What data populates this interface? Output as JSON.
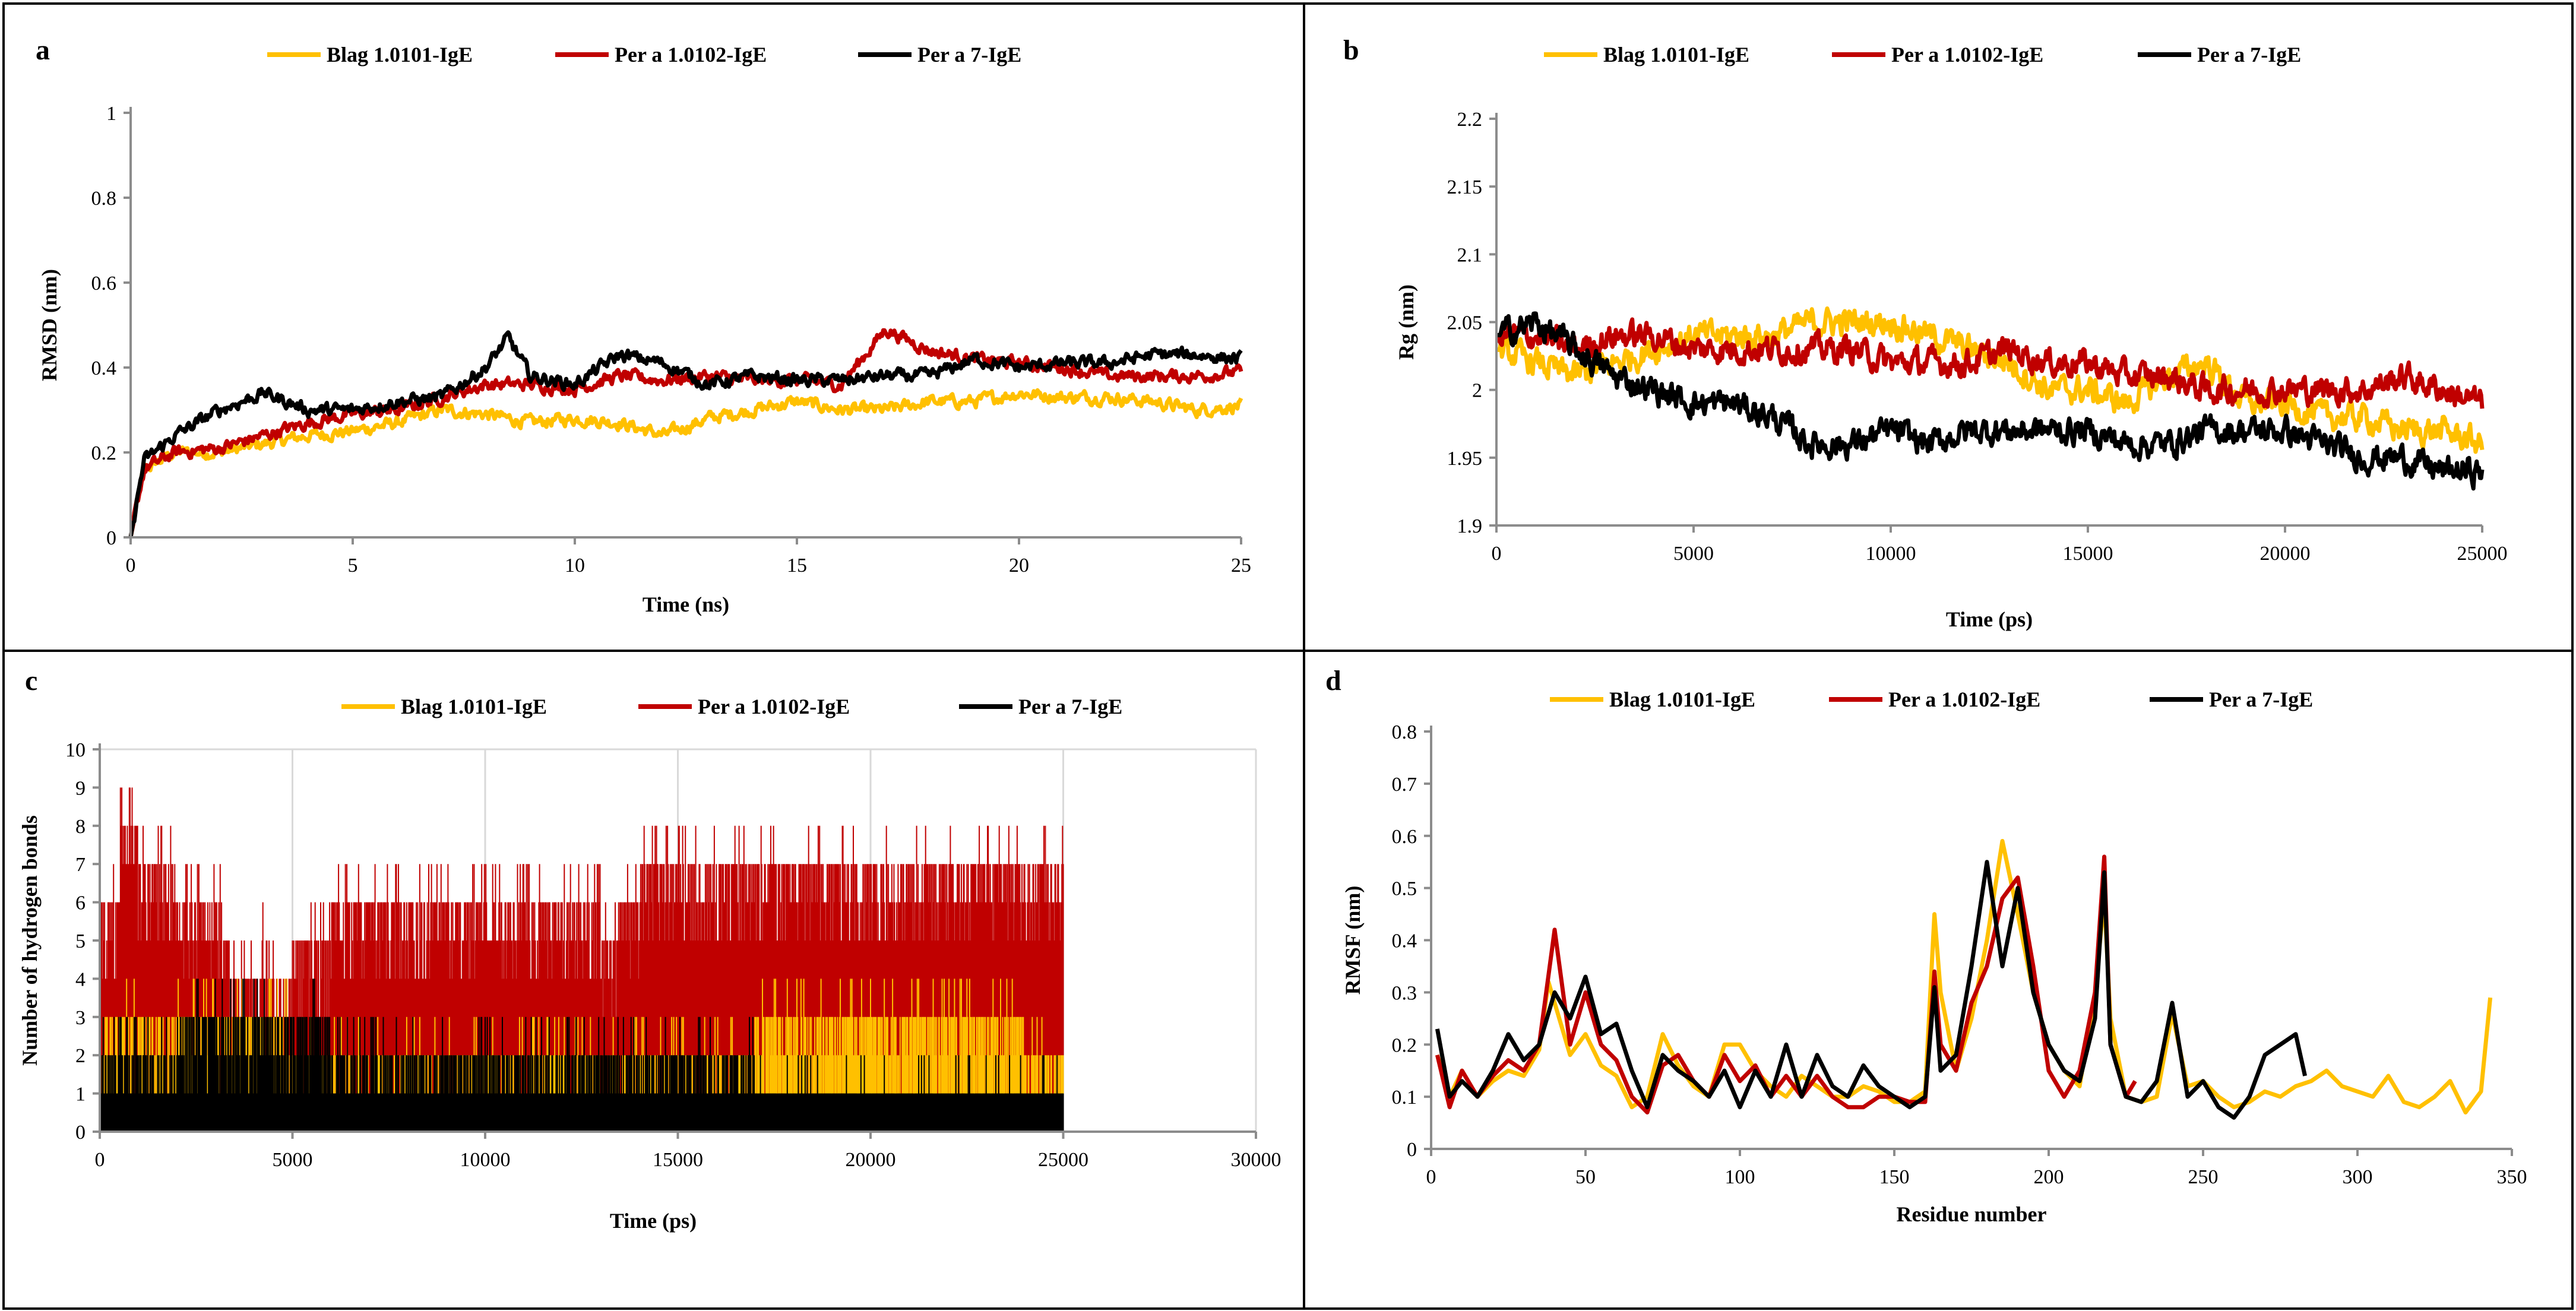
{
  "chart_data": [
    {
      "panel": "a",
      "type": "line",
      "xlabel": "Time (ns)",
      "ylabel": "RMSD (nm)",
      "xlim": [
        0,
        25
      ],
      "ylim": [
        0,
        1
      ],
      "xticks": [
        "0",
        "5",
        "10",
        "15",
        "20",
        "25"
      ],
      "yticks": [
        "0",
        "0.2",
        "0.4",
        "0.6",
        "0.8",
        "1"
      ],
      "grid": false,
      "legend": "top",
      "series": [
        {
          "name": "Blag 1.0101-IgE",
          "color": "#ffc000",
          "x": [
            0,
            0.3,
            1,
            2,
            3,
            4,
            5,
            6,
            7,
            8,
            9,
            10,
            11,
            12,
            13,
            14,
            15,
            16,
            17,
            18,
            19,
            20,
            21,
            22,
            23,
            24,
            25
          ],
          "y": [
            0,
            0.16,
            0.2,
            0.2,
            0.22,
            0.24,
            0.25,
            0.27,
            0.3,
            0.29,
            0.27,
            0.28,
            0.27,
            0.24,
            0.28,
            0.3,
            0.32,
            0.3,
            0.3,
            0.32,
            0.32,
            0.34,
            0.33,
            0.33,
            0.32,
            0.3,
            0.31
          ]
        },
        {
          "name": "Per a 1.0102-IgE",
          "color": "#c00000",
          "x": [
            0,
            0.3,
            1,
            2,
            3,
            4,
            5,
            6,
            7,
            8,
            9,
            10,
            11,
            12,
            13,
            14,
            15,
            16,
            17,
            18,
            19,
            20,
            21,
            22,
            23,
            24,
            25
          ],
          "y": [
            0,
            0.16,
            0.2,
            0.21,
            0.24,
            0.27,
            0.29,
            0.3,
            0.33,
            0.36,
            0.36,
            0.35,
            0.38,
            0.37,
            0.38,
            0.37,
            0.37,
            0.36,
            0.49,
            0.44,
            0.42,
            0.41,
            0.4,
            0.38,
            0.38,
            0.38,
            0.39
          ]
        },
        {
          "name": "Per a 7-IgE",
          "color": "#000000",
          "x": [
            0,
            0.3,
            1,
            2,
            3,
            4,
            5,
            6,
            7,
            8,
            8.5,
            9,
            10,
            11,
            12,
            13,
            14,
            15,
            16,
            17,
            18,
            19,
            20,
            21,
            22,
            23,
            24,
            25
          ],
          "y": [
            0,
            0.18,
            0.24,
            0.3,
            0.34,
            0.3,
            0.3,
            0.32,
            0.33,
            0.4,
            0.47,
            0.38,
            0.36,
            0.43,
            0.41,
            0.36,
            0.38,
            0.37,
            0.37,
            0.38,
            0.38,
            0.42,
            0.4,
            0.41,
            0.41,
            0.43,
            0.43,
            0.42
          ]
        }
      ]
    },
    {
      "panel": "b",
      "type": "line",
      "xlabel": "Time (ps)",
      "ylabel": "Rg (nm)",
      "xlim": [
        0,
        25000
      ],
      "ylim": [
        1.9,
        2.2
      ],
      "xticks": [
        "0",
        "5000",
        "10000",
        "15000",
        "20000",
        "25000"
      ],
      "yticks": [
        "1.9",
        "1.95",
        "2",
        "2.05",
        "2.1",
        "2.15",
        "2.2"
      ],
      "grid": false,
      "legend": "top",
      "series": [
        {
          "name": "Blag 1.0101-IgE",
          "color": "#ffc000",
          "x": [
            0,
            1000,
            2000,
            3000,
            4000,
            5000,
            6000,
            7000,
            8000,
            9000,
            10000,
            11000,
            12000,
            13000,
            14000,
            15000,
            16000,
            17000,
            18000,
            19000,
            20000,
            21000,
            22000,
            23000,
            24000,
            25000
          ],
          "y": [
            2.03,
            2.02,
            2.01,
            2.02,
            2.03,
            2.04,
            2.04,
            2.04,
            2.05,
            2.05,
            2.05,
            2.04,
            2.03,
            2.02,
            2.0,
            2.0,
            1.99,
            2.01,
            2.02,
            1.99,
            1.99,
            1.98,
            1.98,
            1.97,
            1.97,
            1.96
          ]
        },
        {
          "name": "Per a 1.0102-IgE",
          "color": "#c00000",
          "x": [
            0,
            1000,
            2000,
            3000,
            4000,
            5000,
            6000,
            7000,
            8000,
            9000,
            10000,
            11000,
            12000,
            13000,
            14000,
            15000,
            16000,
            17000,
            18000,
            19000,
            20000,
            21000,
            22000,
            23000,
            24000,
            25000
          ],
          "y": [
            2.04,
            2.04,
            2.03,
            2.04,
            2.04,
            2.03,
            2.03,
            2.03,
            2.03,
            2.03,
            2.02,
            2.02,
            2.02,
            2.03,
            2.02,
            2.02,
            2.01,
            2.01,
            2.0,
            2.0,
            2.0,
            2.0,
            2.0,
            2.01,
            2.0,
            1.99
          ]
        },
        {
          "name": "Per a 7-IgE",
          "color": "#000000",
          "x": [
            0,
            1000,
            2000,
            3000,
            4000,
            5000,
            6000,
            7000,
            8000,
            9000,
            10000,
            11000,
            12000,
            13000,
            14000,
            15000,
            16000,
            17000,
            18000,
            19000,
            20000,
            21000,
            22000,
            23000,
            24000,
            25000
          ],
          "y": [
            2.04,
            2.05,
            2.03,
            2.01,
            2.0,
            1.99,
            1.99,
            1.98,
            1.96,
            1.96,
            1.97,
            1.96,
            1.97,
            1.97,
            1.97,
            1.97,
            1.96,
            1.96,
            1.97,
            1.97,
            1.97,
            1.96,
            1.95,
            1.95,
            1.94,
            1.94
          ]
        }
      ]
    },
    {
      "panel": "c",
      "type": "area",
      "xlabel": "Time (ps)",
      "ylabel": "Number  of hydrogen  bonds",
      "xlim": [
        0,
        30000
      ],
      "ylim": [
        0,
        10
      ],
      "xticks": [
        "0",
        "5000",
        "10000",
        "15000",
        "20000",
        "25000",
        "30000"
      ],
      "yticks": [
        "0",
        "1",
        "2",
        "3",
        "4",
        "5",
        "6",
        "7",
        "8",
        "9",
        "10"
      ],
      "grid": true,
      "legend": "top",
      "series": [
        {
          "name": "Per a 1.0102-IgE",
          "color": "#c00000",
          "x": [
            0,
            500,
            1000,
            2000,
            3000,
            3200,
            3400,
            4000,
            4200,
            4400,
            5000,
            6000,
            7000,
            8000,
            9000,
            10000,
            11000,
            12000,
            13000,
            13500,
            14000,
            15000,
            16000,
            17000,
            18000,
            19000,
            20000,
            21000,
            22000,
            23000,
            24000,
            25000
          ],
          "y": [
            6,
            8,
            7,
            6,
            6,
            5,
            4,
            4,
            5,
            4,
            5,
            6,
            6,
            6,
            6,
            6,
            6,
            6,
            5,
            6,
            7,
            7,
            7,
            7,
            7,
            7,
            7,
            7,
            7,
            7,
            7,
            8
          ]
        },
        {
          "name": "Blag 1.0101-IgE",
          "color": "#ffc000",
          "x": [
            0,
            5000,
            10000,
            15000,
            16800,
            17000,
            20000,
            22000,
            23000,
            24000,
            25000
          ],
          "y": [
            3,
            2,
            2,
            2,
            2,
            3,
            3,
            3,
            3,
            2,
            3
          ]
        },
        {
          "name": "Per a 7-IgE",
          "color": "#000000",
          "x": [
            0,
            2000,
            4000,
            6000,
            8000,
            10000,
            12000,
            14000,
            16000,
            17000,
            20000,
            22000,
            25000
          ],
          "y": [
            2,
            3,
            3,
            2,
            2,
            2,
            2,
            2,
            2,
            1,
            1,
            1,
            1
          ]
        }
      ]
    },
    {
      "panel": "d",
      "type": "line",
      "xlabel": "Residue number",
      "ylabel": "RMSF (nm)",
      "xlim": [
        0,
        350
      ],
      "ylim": [
        0,
        0.8
      ],
      "xticks": [
        "0",
        "50",
        "100",
        "150",
        "200",
        "250",
        "300",
        "350"
      ],
      "yticks": [
        "0",
        "0.1",
        "0.2",
        "0.3",
        "0.4",
        "0.5",
        "0.6",
        "0.7",
        "0.8"
      ],
      "grid": false,
      "legend": "top",
      "series": [
        {
          "name": "Blag 1.0101-IgE",
          "color": "#ffc000",
          "x": [
            2,
            6,
            10,
            15,
            20,
            25,
            30,
            35,
            38,
            40,
            45,
            50,
            55,
            60,
            65,
            70,
            75,
            80,
            85,
            90,
            95,
            100,
            105,
            110,
            115,
            120,
            125,
            130,
            135,
            140,
            145,
            150,
            155,
            160,
            163,
            165,
            170,
            175,
            180,
            185,
            190,
            195,
            200,
            205,
            210,
            215,
            218,
            220,
            225,
            230,
            235,
            240,
            245,
            250,
            255,
            260,
            265,
            270,
            275,
            280,
            285,
            290,
            295,
            300,
            305,
            310,
            315,
            320,
            325,
            330,
            335,
            340,
            343
          ],
          "y": [
            0.18,
            0.1,
            0.15,
            0.1,
            0.13,
            0.15,
            0.14,
            0.19,
            0.32,
            0.28,
            0.18,
            0.22,
            0.16,
            0.14,
            0.08,
            0.1,
            0.22,
            0.16,
            0.12,
            0.1,
            0.2,
            0.2,
            0.15,
            0.12,
            0.1,
            0.14,
            0.12,
            0.1,
            0.1,
            0.12,
            0.11,
            0.09,
            0.09,
            0.11,
            0.45,
            0.3,
            0.15,
            0.25,
            0.4,
            0.59,
            0.45,
            0.3,
            0.2,
            0.15,
            0.12,
            0.3,
            0.48,
            0.25,
            0.1,
            0.09,
            0.1,
            0.26,
            0.12,
            0.13,
            0.1,
            0.08,
            0.09,
            0.11,
            0.1,
            0.12,
            0.13,
            0.15,
            0.12,
            0.11,
            0.1,
            0.14,
            0.09,
            0.08,
            0.1,
            0.13,
            0.07,
            0.11,
            0.29
          ]
        },
        {
          "name": "Per a 1.0102-IgE",
          "color": "#c00000",
          "x": [
            2,
            6,
            10,
            15,
            20,
            25,
            30,
            35,
            40,
            45,
            50,
            55,
            60,
            65,
            70,
            75,
            80,
            85,
            90,
            95,
            100,
            105,
            110,
            115,
            120,
            125,
            130,
            135,
            140,
            145,
            150,
            155,
            160,
            163,
            165,
            170,
            175,
            180,
            185,
            190,
            195,
            200,
            205,
            210,
            215,
            218,
            220,
            225,
            228
          ],
          "y": [
            0.18,
            0.08,
            0.15,
            0.1,
            0.14,
            0.17,
            0.15,
            0.2,
            0.42,
            0.2,
            0.3,
            0.2,
            0.17,
            0.1,
            0.07,
            0.16,
            0.18,
            0.13,
            0.1,
            0.18,
            0.13,
            0.16,
            0.1,
            0.14,
            0.1,
            0.14,
            0.1,
            0.08,
            0.08,
            0.1,
            0.1,
            0.09,
            0.09,
            0.34,
            0.2,
            0.15,
            0.28,
            0.35,
            0.48,
            0.52,
            0.35,
            0.15,
            0.1,
            0.15,
            0.3,
            0.56,
            0.2,
            0.1,
            0.13
          ]
        },
        {
          "name": "Per a 7-IgE",
          "color": "#000000",
          "x": [
            2,
            6,
            10,
            15,
            20,
            25,
            30,
            35,
            40,
            45,
            50,
            55,
            60,
            65,
            70,
            75,
            80,
            85,
            90,
            95,
            100,
            105,
            110,
            115,
            120,
            125,
            130,
            135,
            140,
            145,
            150,
            155,
            160,
            163,
            165,
            170,
            175,
            180,
            185,
            190,
            195,
            200,
            205,
            210,
            215,
            218,
            220,
            225,
            230,
            235,
            240,
            245,
            250,
            255,
            260,
            265,
            270,
            275,
            280,
            283
          ],
          "y": [
            0.23,
            0.1,
            0.13,
            0.1,
            0.15,
            0.22,
            0.17,
            0.2,
            0.3,
            0.25,
            0.33,
            0.22,
            0.24,
            0.15,
            0.08,
            0.18,
            0.15,
            0.13,
            0.1,
            0.15,
            0.08,
            0.15,
            0.1,
            0.2,
            0.1,
            0.18,
            0.12,
            0.1,
            0.16,
            0.12,
            0.1,
            0.08,
            0.1,
            0.31,
            0.15,
            0.18,
            0.35,
            0.55,
            0.35,
            0.5,
            0.3,
            0.2,
            0.15,
            0.13,
            0.25,
            0.53,
            0.2,
            0.1,
            0.09,
            0.13,
            0.28,
            0.1,
            0.13,
            0.08,
            0.06,
            0.1,
            0.18,
            0.2,
            0.22,
            0.14
          ]
        }
      ]
    }
  ]
}
